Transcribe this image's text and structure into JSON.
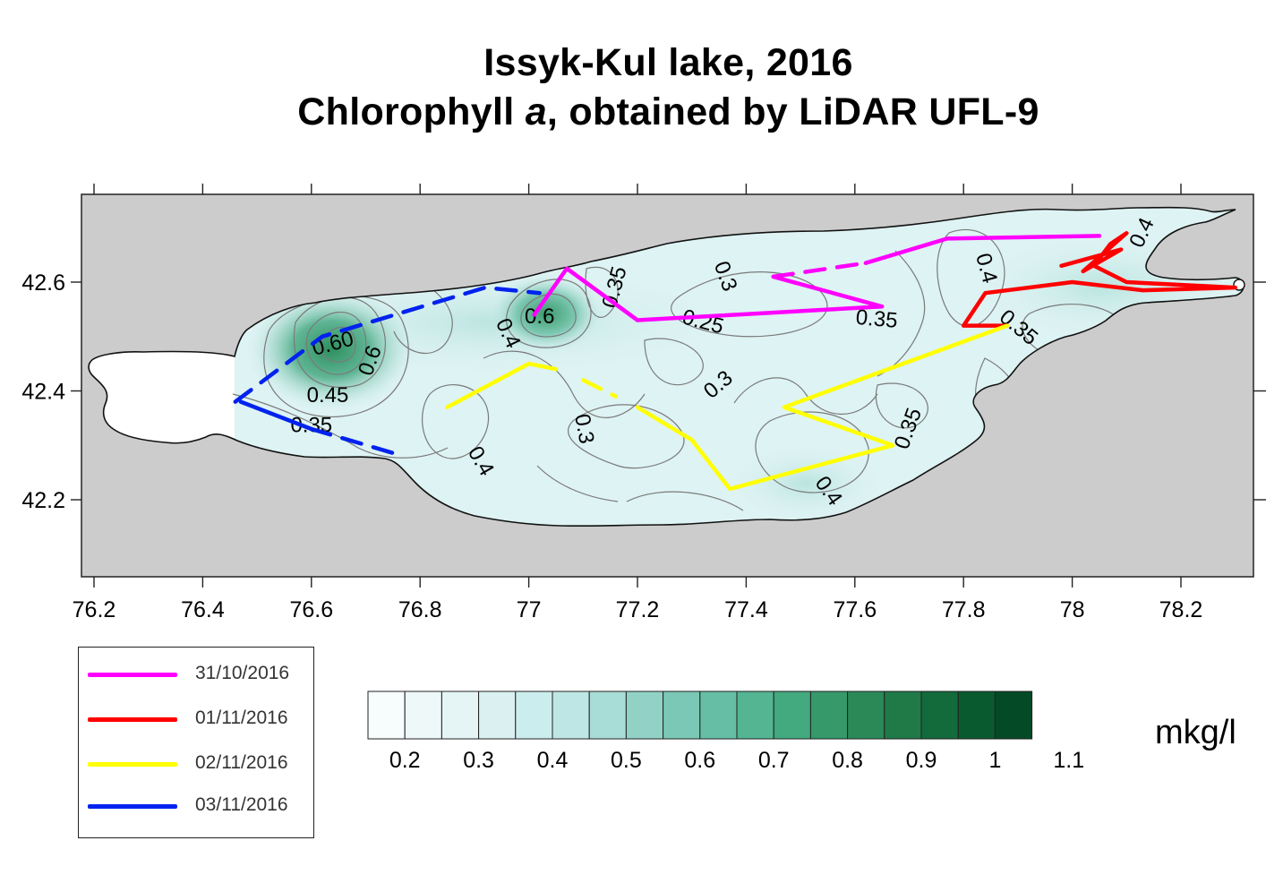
{
  "title": {
    "line1": "Issyk-Kul lake, 2016",
    "line2_before": "Chlorophyll ",
    "line2_italic": "a",
    "line2_after": ", obtained by LiDAR UFL-9"
  },
  "axes": {
    "x_ticks": [
      "76.2",
      "76.4",
      "76.6",
      "76.8",
      "77",
      "77.2",
      "77.4",
      "77.6",
      "77.8",
      "78",
      "78.2"
    ],
    "y_ticks": [
      "42.6",
      "42.4",
      "42.2"
    ],
    "x_range": [
      76.17,
      78.35
    ],
    "y_range": [
      42.04,
      42.76
    ]
  },
  "colors": {
    "land": "#cccccc",
    "lake_outline": "#111111",
    "contour": "#666666"
  },
  "contour_labels": [
    {
      "text": "0.6",
      "lon": 77.02,
      "lat": 42.535,
      "rotate": 0
    },
    {
      "text": "0.4",
      "lon": 76.96,
      "lat": 42.505,
      "rotate": 65
    },
    {
      "text": "0.35",
      "lon": 77.16,
      "lat": 42.59,
      "rotate": -75
    },
    {
      "text": "0.3",
      "lon": 77.36,
      "lat": 42.61,
      "rotate": 70
    },
    {
      "text": "0.25",
      "lon": 77.32,
      "lat": 42.525,
      "rotate": 15
    },
    {
      "text": "0.35",
      "lon": 77.64,
      "lat": 42.53,
      "rotate": 5
    },
    {
      "text": "0.3",
      "lon": 77.35,
      "lat": 42.41,
      "rotate": -40
    },
    {
      "text": "0.3",
      "lon": 77.1,
      "lat": 42.33,
      "rotate": 80
    },
    {
      "text": "0.4",
      "lon": 76.91,
      "lat": 42.27,
      "rotate": 60
    },
    {
      "text": "0.35",
      "lon": 77.7,
      "lat": 42.33,
      "rotate": -70
    },
    {
      "text": "0.4",
      "lon": 77.55,
      "lat": 42.215,
      "rotate": 55
    },
    {
      "text": "0.4",
      "lon": 77.84,
      "lat": 42.625,
      "rotate": 75
    },
    {
      "text": "0.35",
      "lon": 77.9,
      "lat": 42.515,
      "rotate": 40
    },
    {
      "text": "0.4",
      "lon": 78.13,
      "lat": 42.69,
      "rotate": -65
    },
    {
      "text": "0.60",
      "lon": 76.64,
      "lat": 42.485,
      "rotate": -15
    },
    {
      "text": "0.6",
      "lon": 76.71,
      "lat": 42.455,
      "rotate": -70
    },
    {
      "text": "0.45",
      "lon": 76.63,
      "lat": 42.39,
      "rotate": 0
    },
    {
      "text": "0.35",
      "lon": 76.6,
      "lat": 42.335,
      "rotate": 0
    }
  ],
  "tracks": [
    {
      "date": "31/10/2016",
      "color": "#ff00ff",
      "points": [
        [
          77.01,
          42.54
        ],
        [
          77.07,
          42.625
        ],
        [
          77.2,
          42.53
        ],
        [
          77.65,
          42.555
        ],
        [
          77.45,
          42.61
        ]
      ],
      "dashed_points": [
        [
          77.45,
          42.61
        ],
        [
          77.62,
          42.635
        ]
      ],
      "points2": [
        [
          77.62,
          42.635
        ],
        [
          77.77,
          42.68
        ],
        [
          78.05,
          42.685
        ]
      ]
    },
    {
      "date": "01/11/2016",
      "color": "#ff0000",
      "points": [
        [
          77.88,
          42.52
        ],
        [
          77.8,
          42.52
        ],
        [
          77.84,
          42.58
        ],
        [
          78.0,
          42.6
        ],
        [
          78.13,
          42.585
        ],
        [
          78.3,
          42.59
        ],
        [
          78.1,
          42.6
        ],
        [
          78.04,
          42.63
        ],
        [
          78.07,
          42.67
        ],
        [
          78.1,
          42.69
        ],
        [
          78.02,
          42.62
        ],
        [
          78.09,
          42.66
        ],
        [
          77.98,
          42.63
        ]
      ]
    },
    {
      "date": "02/11/2016",
      "color": "#ffff00",
      "points": [
        [
          76.85,
          42.37
        ],
        [
          77.0,
          42.45
        ],
        [
          77.05,
          42.44
        ]
      ],
      "dashed_points": [
        [
          77.1,
          42.42
        ],
        [
          77.16,
          42.39
        ]
      ],
      "points2": [
        [
          77.2,
          42.37
        ],
        [
          77.3,
          42.31
        ],
        [
          77.37,
          42.22
        ],
        [
          77.67,
          42.3
        ],
        [
          77.47,
          42.37
        ],
        [
          77.88,
          42.52
        ]
      ]
    },
    {
      "date": "03/11/2016",
      "color": "#0022ee",
      "dashed_points": [
        [
          76.46,
          42.38
        ],
        [
          76.62,
          42.5
        ],
        [
          76.92,
          42.59
        ],
        [
          77.02,
          42.58
        ]
      ],
      "points": [
        [
          76.47,
          42.38
        ],
        [
          76.6,
          42.33
        ]
      ],
      "dashed_points2": [
        [
          76.6,
          42.33
        ],
        [
          76.77,
          42.28
        ]
      ]
    }
  ],
  "legend": [
    {
      "label": "31/10/2016",
      "color": "#ff00ff"
    },
    {
      "label": "01/11/2016",
      "color": "#ff0000"
    },
    {
      "label": "02/11/2016",
      "color": "#ffff00"
    },
    {
      "label": "03/11/2016",
      "color": "#0022ee"
    }
  ],
  "colorbar": {
    "tick_labels": [
      "0.2",
      "0.3",
      "0.4",
      "0.5",
      "0.6",
      "0.7",
      "0.8",
      "0.9",
      "1",
      "1.1"
    ],
    "colors": [
      "#f7fcfd",
      "#eef8f8",
      "#e5f5f5",
      "#dbf1f1",
      "#cceded",
      "#bde6e4",
      "#a8dcd6",
      "#92d2c6",
      "#7ac8b5",
      "#66bfa4",
      "#53b592",
      "#43a97f",
      "#36996a",
      "#2b8958",
      "#1f7a48",
      "#136a3b",
      "#0a5a30",
      "#054a26"
    ],
    "unit": "mkg/l"
  }
}
